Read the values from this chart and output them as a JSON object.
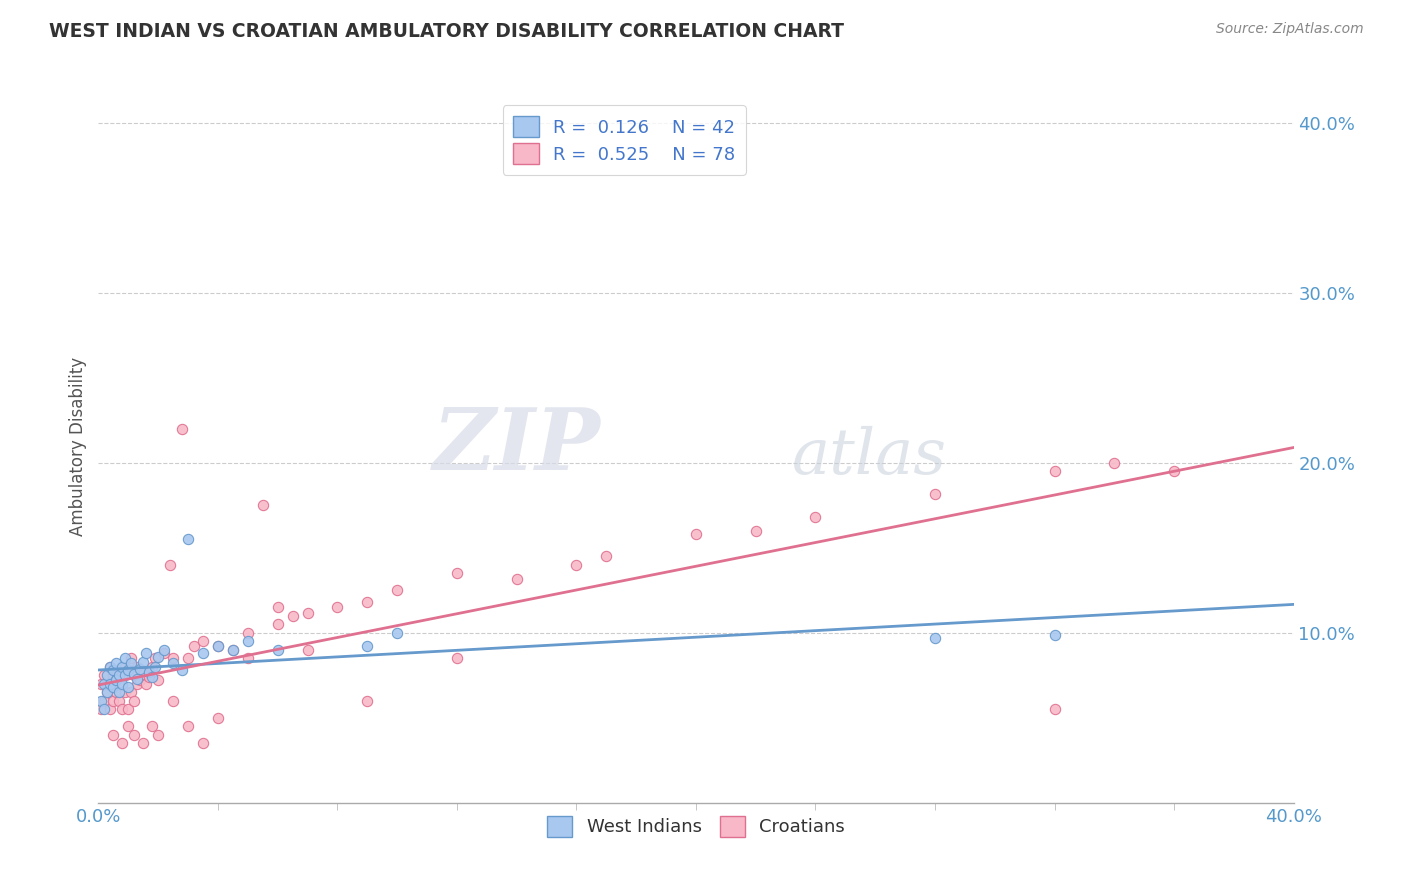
{
  "title": "WEST INDIAN VS CROATIAN AMBULATORY DISABILITY CORRELATION CHART",
  "source": "Source: ZipAtlas.com",
  "ylabel": "Ambulatory Disability",
  "xlim": [
    0.0,
    0.4
  ],
  "ylim": [
    0.0,
    0.42
  ],
  "y_ticks": [
    0.1,
    0.2,
    0.3,
    0.4
  ],
  "y_tick_labels": [
    "10.0%",
    "20.0%",
    "30.0%",
    "40.0%"
  ],
  "grid_color": "#cccccc",
  "background_color": "#ffffff",
  "west_indian_color": "#A8C8F0",
  "croatian_color": "#F8B8C8",
  "west_indian_edge_color": "#6699CC",
  "croatian_edge_color": "#E07090",
  "west_indian_line_color": "#6699CC",
  "croatian_line_color": "#E07090",
  "tick_color": "#5599CC",
  "legend_R1": "0.126",
  "legend_N1": "42",
  "legend_R2": "0.525",
  "legend_N2": "78",
  "watermark_ZIP": "ZIP",
  "watermark_atlas": "atlas",
  "west_indian_x": [
    0.001,
    0.002,
    0.002,
    0.003,
    0.003,
    0.004,
    0.004,
    0.005,
    0.005,
    0.006,
    0.006,
    0.007,
    0.007,
    0.008,
    0.008,
    0.009,
    0.009,
    0.01,
    0.01,
    0.011,
    0.012,
    0.013,
    0.014,
    0.015,
    0.016,
    0.017,
    0.018,
    0.019,
    0.02,
    0.022,
    0.025,
    0.028,
    0.03,
    0.035,
    0.04,
    0.045,
    0.05,
    0.06,
    0.09,
    0.1,
    0.28,
    0.32
  ],
  "west_indian_y": [
    0.06,
    0.055,
    0.07,
    0.065,
    0.075,
    0.07,
    0.08,
    0.068,
    0.078,
    0.072,
    0.082,
    0.065,
    0.075,
    0.07,
    0.08,
    0.075,
    0.085,
    0.068,
    0.078,
    0.082,
    0.076,
    0.073,
    0.079,
    0.083,
    0.088,
    0.077,
    0.074,
    0.08,
    0.086,
    0.09,
    0.082,
    0.078,
    0.155,
    0.088,
    0.092,
    0.09,
    0.095,
    0.09,
    0.092,
    0.1,
    0.097,
    0.099
  ],
  "croatian_x": [
    0.001,
    0.001,
    0.002,
    0.002,
    0.003,
    0.003,
    0.004,
    0.004,
    0.005,
    0.005,
    0.006,
    0.006,
    0.007,
    0.007,
    0.008,
    0.008,
    0.009,
    0.009,
    0.01,
    0.01,
    0.011,
    0.011,
    0.012,
    0.012,
    0.013,
    0.013,
    0.014,
    0.015,
    0.016,
    0.017,
    0.018,
    0.019,
    0.02,
    0.022,
    0.024,
    0.025,
    0.028,
    0.03,
    0.032,
    0.035,
    0.04,
    0.045,
    0.05,
    0.055,
    0.06,
    0.065,
    0.07,
    0.08,
    0.09,
    0.1,
    0.12,
    0.14,
    0.16,
    0.17,
    0.2,
    0.22,
    0.24,
    0.28,
    0.32,
    0.34,
    0.36,
    0.005,
    0.008,
    0.01,
    0.012,
    0.015,
    0.018,
    0.02,
    0.025,
    0.03,
    0.035,
    0.04,
    0.05,
    0.06,
    0.07,
    0.09,
    0.12,
    0.32
  ],
  "croatian_y": [
    0.055,
    0.07,
    0.06,
    0.075,
    0.065,
    0.07,
    0.055,
    0.08,
    0.06,
    0.075,
    0.065,
    0.078,
    0.06,
    0.07,
    0.055,
    0.075,
    0.065,
    0.08,
    0.055,
    0.078,
    0.065,
    0.085,
    0.06,
    0.075,
    0.07,
    0.08,
    0.072,
    0.076,
    0.07,
    0.074,
    0.08,
    0.085,
    0.072,
    0.088,
    0.14,
    0.085,
    0.22,
    0.085,
    0.092,
    0.095,
    0.092,
    0.09,
    0.1,
    0.175,
    0.105,
    0.11,
    0.112,
    0.115,
    0.118,
    0.125,
    0.135,
    0.132,
    0.14,
    0.145,
    0.158,
    0.16,
    0.168,
    0.182,
    0.055,
    0.2,
    0.195,
    0.04,
    0.035,
    0.045,
    0.04,
    0.035,
    0.045,
    0.04,
    0.06,
    0.045,
    0.035,
    0.05,
    0.085,
    0.115,
    0.09,
    0.06,
    0.085,
    0.195
  ]
}
